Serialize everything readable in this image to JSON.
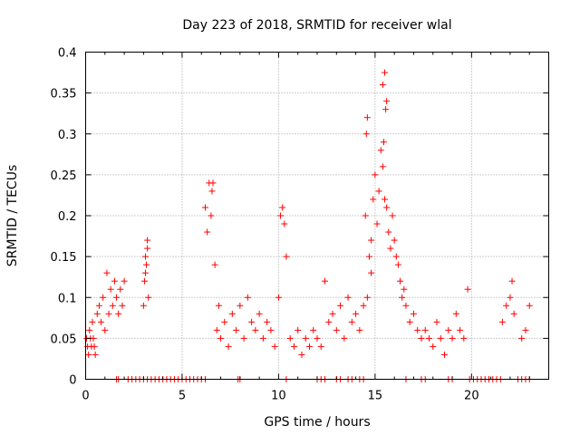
{
  "chart_data": {
    "type": "scatter",
    "title": "Day 223 of 2018, SRMTID for receiver wlal",
    "xlabel": "GPS time / hours",
    "ylabel": "SRMTID / TECUs",
    "xlim": [
      0,
      24
    ],
    "ylim": [
      0,
      0.4
    ],
    "grid": true,
    "marker": "+",
    "color": "#ff0000",
    "x_ticks": [
      0,
      5,
      10,
      15,
      20
    ],
    "x_tick_labels": [
      "0",
      "5",
      "10",
      "15",
      "20"
    ],
    "y_ticks": [
      0,
      0.05,
      0.1,
      0.15,
      0.2,
      0.25,
      0.3,
      0.35,
      0.4
    ],
    "y_tick_labels": [
      "0",
      "0.05",
      "0.1",
      "0.15",
      "0.2",
      "0.25",
      "0.3",
      "0.35",
      "0.4"
    ],
    "series": [
      {
        "name": "SRMTID",
        "x": [
          0.05,
          0.1,
          0.15,
          0.2,
          0.25,
          0.3,
          0.35,
          0.4,
          0.45,
          0.5,
          0.6,
          0.7,
          0.8,
          0.9,
          1.0,
          1.1,
          1.2,
          1.3,
          1.4,
          1.5,
          1.6,
          1.7,
          1.8,
          1.9,
          2.0,
          3.0,
          3.05,
          3.1,
          3.15,
          3.2,
          3.25,
          3.1,
          3.2,
          6.2,
          6.3,
          6.4,
          6.5,
          6.55,
          6.6,
          6.7,
          6.8,
          6.9,
          7.0,
          7.2,
          7.4,
          7.6,
          7.8,
          8.0,
          8.2,
          8.4,
          8.6,
          8.8,
          9.0,
          9.2,
          9.4,
          9.6,
          9.8,
          10.0,
          10.1,
          10.2,
          10.3,
          10.4,
          10.6,
          10.8,
          11.0,
          11.2,
          11.4,
          11.6,
          11.8,
          12.0,
          12.2,
          12.4,
          12.6,
          12.8,
          13.0,
          13.2,
          13.4,
          13.6,
          13.8,
          14.0,
          14.2,
          14.4,
          14.6,
          14.8,
          14.5,
          14.55,
          14.6,
          14.7,
          14.8,
          14.9,
          15.0,
          15.1,
          15.2,
          15.3,
          15.4,
          15.5,
          15.6,
          15.7,
          15.8,
          15.9,
          16.0,
          16.1,
          16.2,
          16.3,
          16.4,
          16.5,
          16.6,
          16.8,
          17.0,
          17.2,
          17.4,
          15.4,
          15.5,
          15.55,
          15.6,
          15.45,
          17.6,
          17.8,
          18.0,
          18.2,
          18.4,
          18.6,
          18.8,
          19.0,
          19.2,
          19.4,
          19.6,
          19.8,
          21.6,
          21.8,
          22.0,
          22.1,
          22.2,
          22.6,
          22.8,
          23.0,
          1.6,
          1.7,
          2.2,
          2.4,
          2.6,
          2.8,
          3.0,
          3.2,
          3.4,
          3.6,
          3.8,
          4.0,
          4.2,
          4.4,
          4.6,
          4.8,
          5.0,
          5.2,
          5.4,
          5.6,
          5.8,
          6.0,
          6.2,
          7.9,
          8.0,
          10.4,
          12.0,
          12.2,
          12.4,
          13.0,
          13.2,
          13.6,
          13.8,
          14.2,
          14.4,
          16.6,
          17.4,
          17.6,
          18.8,
          19.0,
          19.9,
          20.1,
          20.3,
          20.5,
          20.7,
          20.9,
          21.1,
          21.3,
          21.5,
          22.4,
          22.6,
          22.8,
          23.0
        ],
        "y": [
          0.05,
          0.04,
          0.03,
          0.06,
          0.05,
          0.04,
          0.07,
          0.05,
          0.04,
          0.03,
          0.08,
          0.09,
          0.07,
          0.1,
          0.06,
          0.13,
          0.08,
          0.11,
          0.09,
          0.12,
          0.1,
          0.08,
          0.11,
          0.09,
          0.12,
          0.09,
          0.12,
          0.15,
          0.14,
          0.16,
          0.1,
          0.13,
          0.17,
          0.21,
          0.18,
          0.24,
          0.2,
          0.23,
          0.24,
          0.14,
          0.06,
          0.09,
          0.05,
          0.07,
          0.04,
          0.08,
          0.06,
          0.09,
          0.05,
          0.1,
          0.07,
          0.06,
          0.08,
          0.05,
          0.07,
          0.06,
          0.04,
          0.1,
          0.2,
          0.21,
          0.19,
          0.15,
          0.05,
          0.04,
          0.06,
          0.03,
          0.05,
          0.04,
          0.06,
          0.05,
          0.04,
          0.12,
          0.07,
          0.08,
          0.06,
          0.09,
          0.05,
          0.1,
          0.07,
          0.08,
          0.06,
          0.09,
          0.1,
          0.13,
          0.2,
          0.3,
          0.32,
          0.15,
          0.17,
          0.22,
          0.25,
          0.19,
          0.23,
          0.28,
          0.26,
          0.22,
          0.21,
          0.18,
          0.16,
          0.2,
          0.17,
          0.15,
          0.14,
          0.12,
          0.1,
          0.11,
          0.09,
          0.07,
          0.08,
          0.06,
          0.05,
          0.36,
          0.375,
          0.33,
          0.34,
          0.29,
          0.06,
          0.05,
          0.04,
          0.07,
          0.05,
          0.03,
          0.06,
          0.05,
          0.08,
          0.06,
          0.05,
          0.11,
          0.07,
          0.09,
          0.1,
          0.12,
          0.08,
          0.05,
          0.06,
          0.09,
          0.0,
          0.0,
          0.0,
          0.0,
          0.0,
          0.0,
          0.0,
          0.0,
          0.0,
          0.0,
          0.0,
          0.0,
          0.0,
          0.0,
          0.0,
          0.0,
          0.0,
          0.0,
          0.0,
          0.0,
          0.0,
          0.0,
          0.0,
          0.0,
          0.0,
          0.0,
          0.0,
          0.0,
          0.0,
          0.0,
          0.0,
          0.0,
          0.0,
          0.0,
          0.0,
          0.0,
          0.0,
          0.0,
          0.0,
          0.0,
          0.0,
          0.0,
          0.0,
          0.0,
          0.0,
          0.0,
          0.0,
          0.0,
          0.0,
          0.0,
          0.0,
          0.0,
          0.0
        ]
      }
    ]
  }
}
